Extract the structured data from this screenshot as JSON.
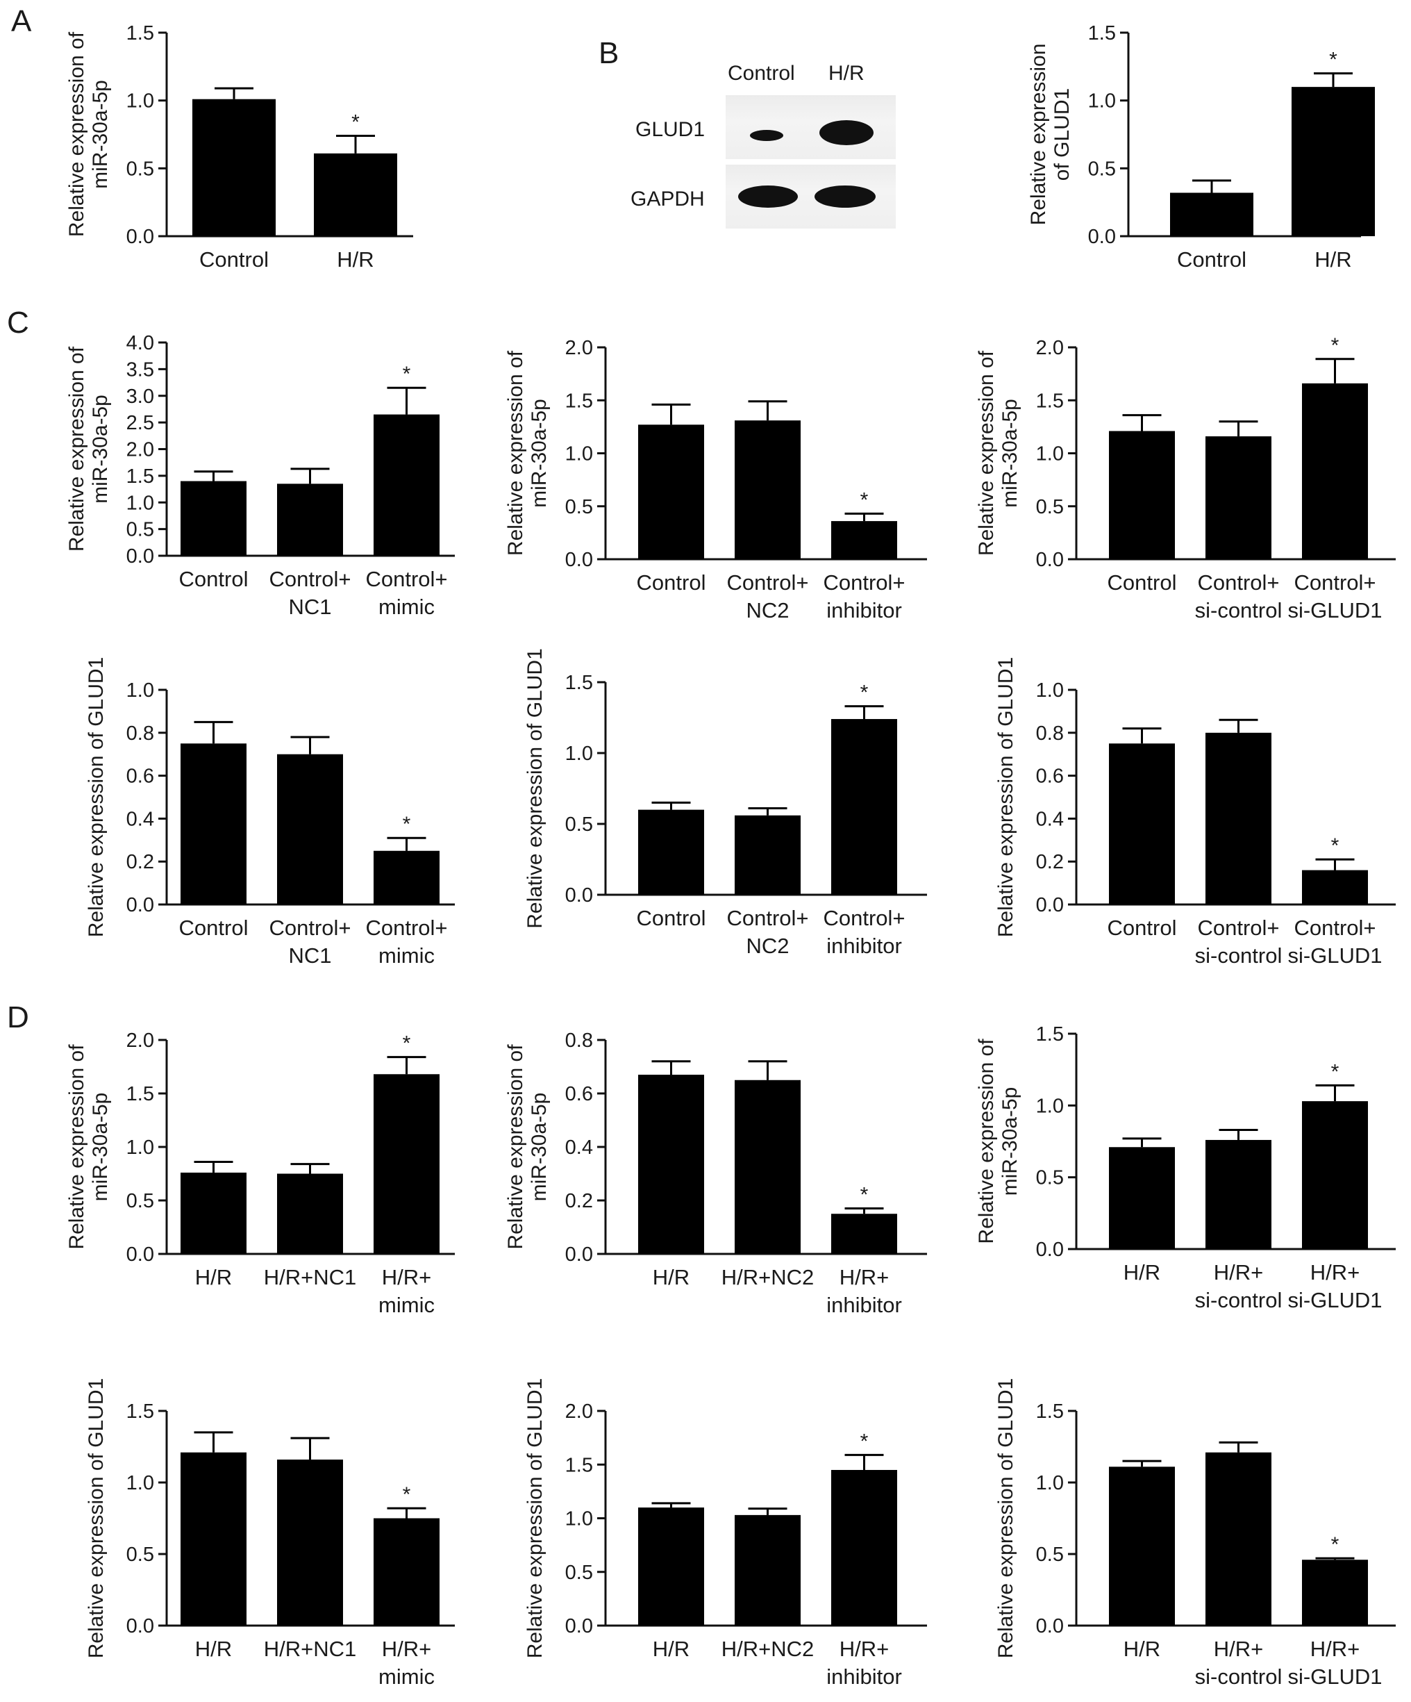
{
  "panels": {
    "A": "A",
    "B": "B",
    "C": "C",
    "D": "D"
  },
  "blot": {
    "lanes": [
      "Control",
      "H/R"
    ],
    "rows": [
      "GLUD1",
      "GAPDH"
    ]
  },
  "chart_data": [
    {
      "id": "A",
      "type": "bar",
      "ylabel": [
        "Relative expression of",
        "miR-30a-5p"
      ],
      "categories": [
        [
          "Control"
        ],
        [
          "H/R"
        ]
      ],
      "values": [
        1.01,
        0.61
      ],
      "errors": [
        0.08,
        0.13
      ],
      "stars": [
        false,
        true
      ],
      "ylim": [
        0,
        1.5
      ],
      "ticks": [
        "0.0",
        "0.5",
        "1.0",
        "1.5"
      ]
    },
    {
      "id": "B",
      "type": "bar",
      "ylabel": [
        "Relative expression",
        "of GLUD1"
      ],
      "categories": [
        [
          "Control"
        ],
        [
          "H/R"
        ]
      ],
      "values": [
        0.32,
        1.1
      ],
      "errors": [
        0.09,
        0.1
      ],
      "stars": [
        false,
        true
      ],
      "ylim": [
        0,
        1.5
      ],
      "ticks": [
        "0.0",
        "0.5",
        "1.0",
        "1.5"
      ]
    },
    {
      "id": "C1",
      "type": "bar",
      "ylabel": [
        "Relative expression of",
        "miR-30a-5p"
      ],
      "categories": [
        [
          "Control"
        ],
        [
          "Control+",
          "NC1"
        ],
        [
          "Control+",
          "mimic"
        ]
      ],
      "values": [
        1.4,
        1.35,
        2.65
      ],
      "errors": [
        0.18,
        0.28,
        0.5
      ],
      "stars": [
        false,
        false,
        true
      ],
      "ylim": [
        0,
        4.0
      ],
      "ticks": [
        "0.0",
        "0.5",
        "1.0",
        "1.5",
        "2.0",
        "2.5",
        "3.0",
        "3.5",
        "4.0"
      ]
    },
    {
      "id": "C2",
      "type": "bar",
      "ylabel": [
        "Relative expression of",
        "miR-30a-5p"
      ],
      "categories": [
        [
          "Control"
        ],
        [
          "Control+",
          "NC2"
        ],
        [
          "Control+",
          "inhibitor"
        ]
      ],
      "values": [
        1.27,
        1.31,
        0.36
      ],
      "errors": [
        0.19,
        0.18,
        0.07
      ],
      "stars": [
        false,
        false,
        true
      ],
      "ylim": [
        0,
        2.0
      ],
      "ticks": [
        "0.0",
        "0.5",
        "1.0",
        "1.5",
        "2.0"
      ]
    },
    {
      "id": "C3",
      "type": "bar",
      "ylabel": [
        "Relative expression of",
        "miR-30a-5p"
      ],
      "categories": [
        [
          "Control"
        ],
        [
          "Control+",
          "si-control"
        ],
        [
          "Control+",
          "si-GLUD1"
        ]
      ],
      "values": [
        1.21,
        1.16,
        1.66
      ],
      "errors": [
        0.15,
        0.14,
        0.23
      ],
      "stars": [
        false,
        false,
        true
      ],
      "ylim": [
        0,
        2.0
      ],
      "ticks": [
        "0.0",
        "0.5",
        "1.0",
        "1.5",
        "2.0"
      ]
    },
    {
      "id": "C4",
      "type": "bar",
      "ylabel": [
        "Relative expression of GLUD1"
      ],
      "categories": [
        [
          "Control"
        ],
        [
          "Control+",
          "NC1"
        ],
        [
          "Control+",
          "mimic"
        ]
      ],
      "values": [
        0.75,
        0.7,
        0.25
      ],
      "errors": [
        0.1,
        0.08,
        0.06
      ],
      "stars": [
        false,
        false,
        true
      ],
      "ylim": [
        0,
        1.0
      ],
      "ticks": [
        "0.0",
        "0.2",
        "0.4",
        "0.6",
        "0.8",
        "1.0"
      ]
    },
    {
      "id": "C5",
      "type": "bar",
      "ylabel": [
        "Relative expression of GLUD1"
      ],
      "categories": [
        [
          "Control"
        ],
        [
          "Control+",
          "NC2"
        ],
        [
          "Control+",
          "inhibitor"
        ]
      ],
      "values": [
        0.6,
        0.56,
        1.24
      ],
      "errors": [
        0.05,
        0.05,
        0.09
      ],
      "stars": [
        false,
        false,
        true
      ],
      "ylim": [
        0,
        1.5
      ],
      "ticks": [
        "0.0",
        "0.5",
        "1.0",
        "1.5"
      ]
    },
    {
      "id": "C6",
      "type": "bar",
      "ylabel": [
        "Relative expression of GLUD1"
      ],
      "categories": [
        [
          "Control"
        ],
        [
          "Control+",
          "si-control"
        ],
        [
          "Control+",
          "si-GLUD1"
        ]
      ],
      "values": [
        0.75,
        0.8,
        0.16
      ],
      "errors": [
        0.07,
        0.06,
        0.05
      ],
      "stars": [
        false,
        false,
        true
      ],
      "ylim": [
        0,
        1.0
      ],
      "ticks": [
        "0.0",
        "0.2",
        "0.4",
        "0.6",
        "0.8",
        "1.0"
      ]
    },
    {
      "id": "D1",
      "type": "bar",
      "ylabel": [
        "Relative expression of",
        "miR-30a-5p"
      ],
      "categories": [
        [
          "H/R"
        ],
        [
          "H/R+NC1"
        ],
        [
          "H/R+",
          "mimic"
        ]
      ],
      "values": [
        0.76,
        0.75,
        1.68
      ],
      "errors": [
        0.1,
        0.09,
        0.16
      ],
      "stars": [
        false,
        false,
        true
      ],
      "ylim": [
        0,
        2.0
      ],
      "ticks": [
        "0.0",
        "0.5",
        "1.0",
        "1.5",
        "2.0"
      ]
    },
    {
      "id": "D2",
      "type": "bar",
      "ylabel": [
        "Relative expression of",
        "miR-30a-5p"
      ],
      "categories": [
        [
          "H/R"
        ],
        [
          "H/R+NC2"
        ],
        [
          "H/R+",
          "inhibitor"
        ]
      ],
      "values": [
        0.67,
        0.65,
        0.15
      ],
      "errors": [
        0.05,
        0.07,
        0.02
      ],
      "stars": [
        false,
        false,
        true
      ],
      "ylim": [
        0,
        0.8
      ],
      "ticks": [
        "0.0",
        "0.2",
        "0.4",
        "0.6",
        "0.8"
      ]
    },
    {
      "id": "D3",
      "type": "bar",
      "ylabel": [
        "Relative expression of",
        "miR-30a-5p"
      ],
      "categories": [
        [
          "H/R"
        ],
        [
          "H/R+",
          "si-control"
        ],
        [
          "H/R+",
          "si-GLUD1"
        ]
      ],
      "values": [
        0.71,
        0.76,
        1.03
      ],
      "errors": [
        0.06,
        0.07,
        0.11
      ],
      "stars": [
        false,
        false,
        true
      ],
      "ylim": [
        0,
        1.5
      ],
      "ticks": [
        "0.0",
        "0.5",
        "1.0",
        "1.5"
      ]
    },
    {
      "id": "D4",
      "type": "bar",
      "ylabel": [
        "Relative expression of GLUD1"
      ],
      "categories": [
        [
          "H/R"
        ],
        [
          "H/R+NC1"
        ],
        [
          "H/R+",
          "mimic"
        ]
      ],
      "values": [
        1.21,
        1.16,
        0.75
      ],
      "errors": [
        0.14,
        0.15,
        0.07
      ],
      "stars": [
        false,
        false,
        true
      ],
      "ylim": [
        0,
        1.5
      ],
      "ticks": [
        "0.0",
        "0.5",
        "1.0",
        "1.5"
      ]
    },
    {
      "id": "D5",
      "type": "bar",
      "ylabel": [
        "Relative expression of GLUD1"
      ],
      "categories": [
        [
          "H/R"
        ],
        [
          "H/R+NC2"
        ],
        [
          "H/R+",
          "inhibitor"
        ]
      ],
      "values": [
        1.1,
        1.03,
        1.45
      ],
      "errors": [
        0.04,
        0.06,
        0.14
      ],
      "stars": [
        false,
        false,
        true
      ],
      "ylim": [
        0,
        2.0
      ],
      "ticks": [
        "0.0",
        "0.5",
        "1.0",
        "1.5",
        "2.0"
      ]
    },
    {
      "id": "D6",
      "type": "bar",
      "ylabel": [
        "Relative expression of GLUD1"
      ],
      "categories": [
        [
          "H/R"
        ],
        [
          "H/R+",
          "si-control"
        ],
        [
          "H/R+",
          "si-GLUD1"
        ]
      ],
      "values": [
        1.11,
        1.21,
        0.46
      ],
      "errors": [
        0.04,
        0.07,
        0.01
      ],
      "stars": [
        false,
        false,
        true
      ],
      "ylim": [
        0,
        1.5
      ],
      "ticks": [
        "0.0",
        "0.5",
        "1.0",
        "1.5"
      ]
    }
  ]
}
